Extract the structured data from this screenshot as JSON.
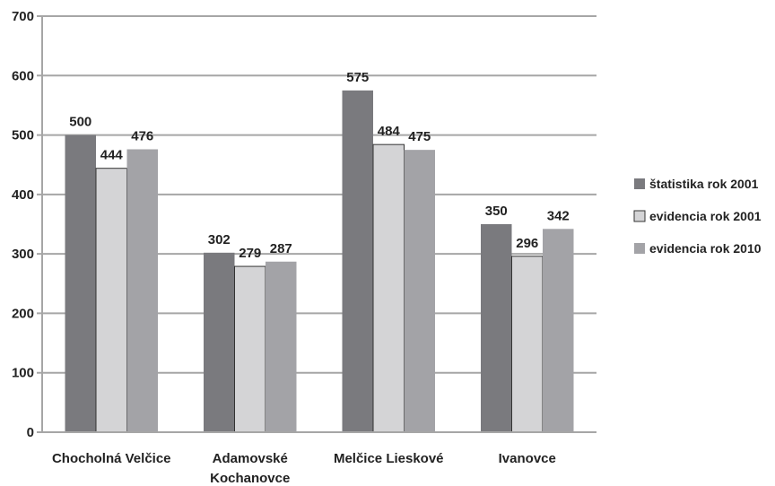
{
  "chart_data": {
    "type": "bar",
    "categories": [
      [
        "Chocholná Velčice"
      ],
      [
        "Adamovské",
        "Kochanovce"
      ],
      [
        "Melčice Lieskové"
      ],
      [
        "Ivanovce"
      ]
    ],
    "series": [
      {
        "name": "štatistika rok 2001",
        "values": [
          500,
          302,
          575,
          350
        ],
        "color": "#7a7a7e"
      },
      {
        "name": "evidencia rok 2001",
        "values": [
          444,
          279,
          484,
          296
        ],
        "color": "#d4d4d6"
      },
      {
        "name": "evidencia rok 2010",
        "values": [
          476,
          287,
          475,
          342
        ],
        "color": "#a3a3a7"
      }
    ],
    "ylim": [
      0,
      700
    ],
    "yticks": [
      0,
      100,
      200,
      300,
      400,
      500,
      600,
      700
    ],
    "grid": true,
    "legend": "right",
    "title": "",
    "xlabel": "",
    "ylabel": ""
  }
}
